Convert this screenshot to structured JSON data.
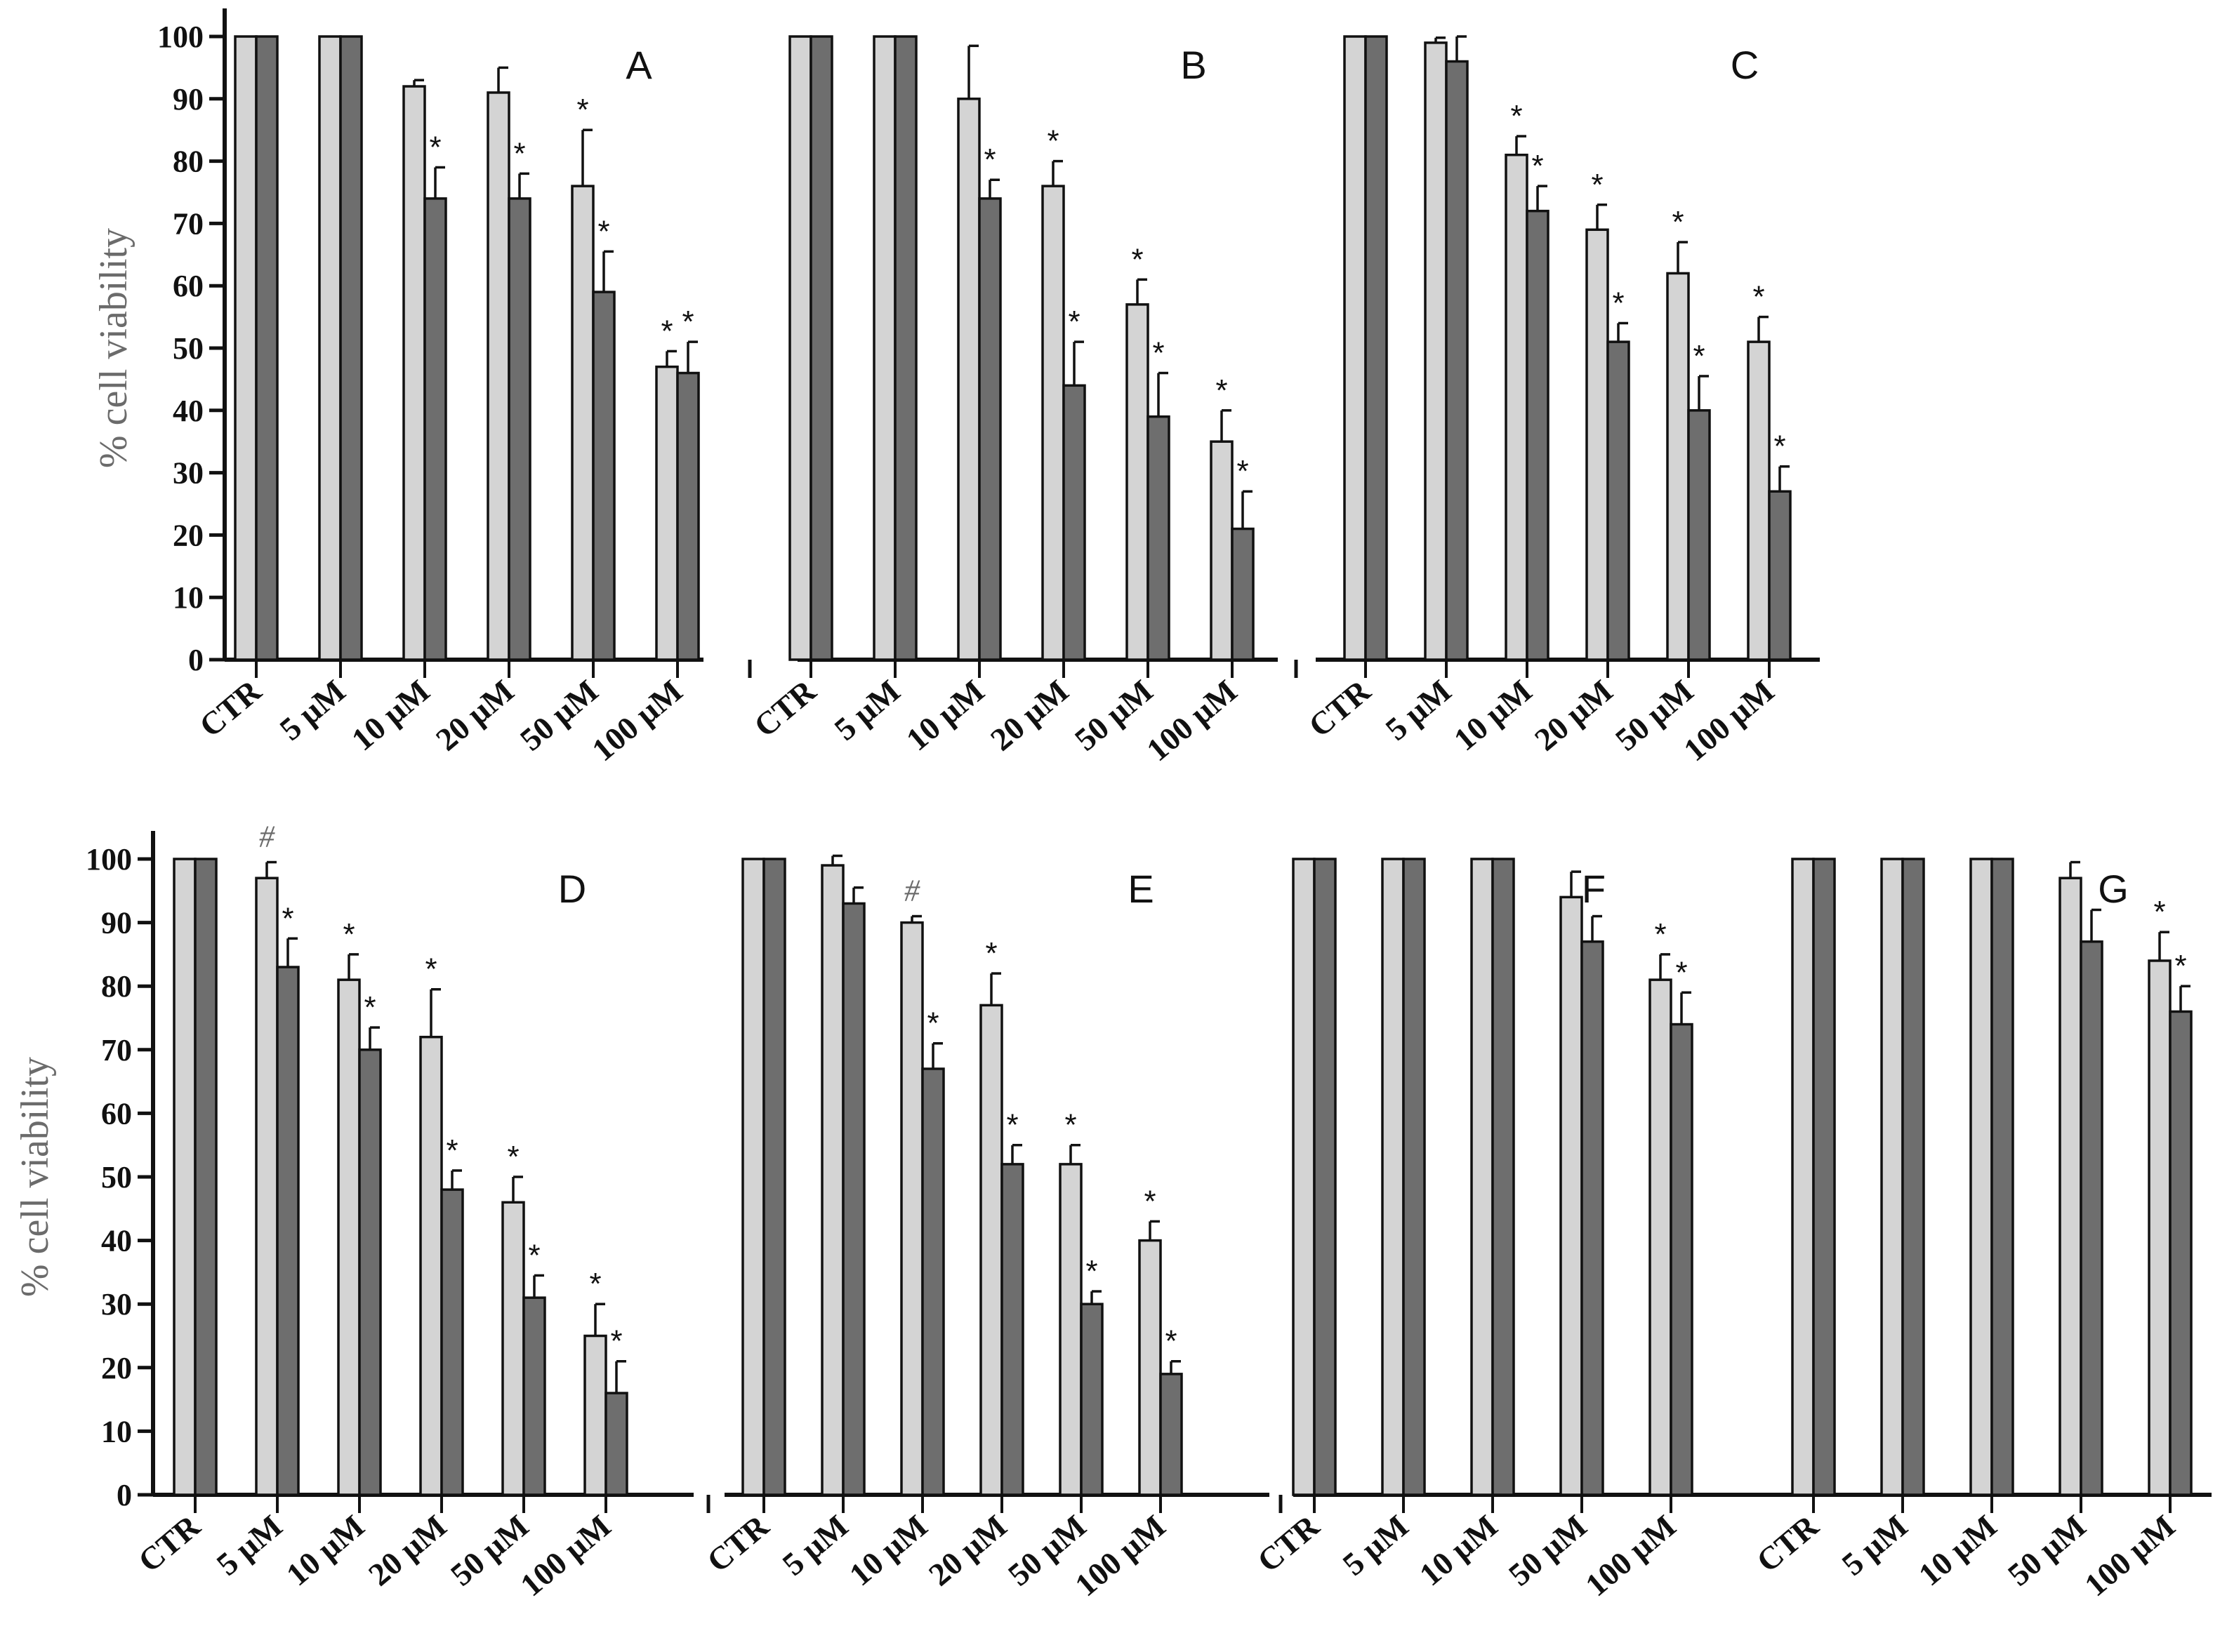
{
  "colors": {
    "light_bar": "#d4d4d4",
    "dark_bar": "#6e6e6e",
    "outline": "#111111",
    "axis": "#111111",
    "ylabel": "#6b6b6b"
  },
  "chart_data": [
    {
      "type": "bar",
      "title": "",
      "panel_labels": [
        "A",
        "B",
        "C"
      ],
      "xlabel": "",
      "ylabel": "% cell viability",
      "ylim": [
        0,
        100
      ],
      "yticks": [
        "0",
        "10",
        "20",
        "30",
        "40",
        "50",
        "60",
        "70",
        "80",
        "90",
        "100"
      ],
      "grid": false,
      "panels": [
        {
          "label": "A",
          "categories": [
            "CTR",
            "5 µM",
            "10 µM",
            "20 µM",
            "50 µM",
            "100 µM"
          ],
          "series": [
            {
              "name": "light",
              "values": [
                100,
                100,
                92,
                91,
                76,
                47
              ],
              "errors": [
                0,
                0,
                1,
                4,
                9,
                2.5
              ]
            },
            {
              "name": "dark",
              "values": [
                100,
                100,
                74,
                74,
                59,
                46
              ],
              "errors": [
                0,
                0,
                5,
                4,
                6.5,
                5
              ]
            }
          ],
          "marks": {
            "light": [
              "",
              "",
              "",
              "",
              "*",
              "*"
            ],
            "dark": [
              "",
              "",
              "*",
              "*",
              "*",
              "*"
            ]
          }
        },
        {
          "label": "B",
          "categories": [
            "CTR",
            "5 µM",
            "10 µM",
            "20 µM",
            "50 µM",
            "100 µM"
          ],
          "series": [
            {
              "name": "light",
              "values": [
                100,
                100,
                90,
                76,
                57,
                35
              ],
              "errors": [
                0,
                0,
                8.5,
                4,
                4,
                5
              ]
            },
            {
              "name": "dark",
              "values": [
                100,
                100,
                74,
                44,
                39,
                21
              ],
              "errors": [
                0,
                0,
                3,
                7,
                7,
                6
              ]
            }
          ],
          "marks": {
            "light": [
              "",
              "",
              "",
              "*",
              "*",
              "*"
            ],
            "dark": [
              "",
              "",
              "*",
              "*",
              "*",
              "*"
            ]
          }
        },
        {
          "label": "C",
          "categories": [
            "CTR",
            "5 µM",
            "10 µM",
            "20 µM",
            "50 µM",
            "100 µM"
          ],
          "series": [
            {
              "name": "light",
              "values": [
                100,
                99,
                81,
                69,
                62,
                51
              ],
              "errors": [
                0,
                0.8,
                3,
                4,
                5,
                4
              ]
            },
            {
              "name": "dark",
              "values": [
                100,
                96,
                72,
                51,
                40,
                27
              ],
              "errors": [
                0,
                4,
                4,
                3,
                5.5,
                4
              ]
            }
          ],
          "marks": {
            "light": [
              "",
              "",
              "*",
              "*",
              "*",
              "*"
            ],
            "dark": [
              "",
              "",
              "*",
              "*",
              "*",
              "*"
            ]
          }
        }
      ]
    },
    {
      "type": "bar",
      "title": "",
      "panel_labels": [
        "D",
        "E",
        "F",
        "G"
      ],
      "xlabel": "",
      "ylabel": "% cell viability",
      "ylim": [
        0,
        100
      ],
      "yticks": [
        "0",
        "10",
        "20",
        "30",
        "40",
        "50",
        "60",
        "70",
        "80",
        "90",
        "100"
      ],
      "grid": false,
      "panels": [
        {
          "label": "D",
          "categories": [
            "CTR",
            "5 µM",
            "10 µM",
            "20 µM",
            "50 µM",
            "100 µM"
          ],
          "series": [
            {
              "name": "light",
              "values": [
                100,
                97,
                81,
                72,
                46,
                25
              ],
              "errors": [
                0,
                2.5,
                4,
                7.5,
                4,
                5
              ]
            },
            {
              "name": "dark",
              "values": [
                100,
                83,
                70,
                48,
                31,
                16
              ],
              "errors": [
                0,
                4.5,
                3.5,
                3,
                3.5,
                5
              ]
            }
          ],
          "marks": {
            "light": [
              "",
              "#",
              "*",
              "*",
              "*",
              "*"
            ],
            "dark": [
              "",
              "*",
              "*",
              "*",
              "*",
              "*"
            ]
          }
        },
        {
          "label": "E",
          "categories": [
            "CTR",
            "5 µM",
            "10 µM",
            "20 µM",
            "50 µM",
            "100 µM"
          ],
          "series": [
            {
              "name": "light",
              "values": [
                100,
                99,
                90,
                77,
                52,
                40
              ],
              "errors": [
                0,
                1.5,
                1,
                5,
                3,
                3
              ]
            },
            {
              "name": "dark",
              "values": [
                100,
                93,
                67,
                52,
                30,
                19
              ],
              "errors": [
                0,
                2.5,
                4,
                3,
                2,
                2
              ]
            }
          ],
          "marks": {
            "light": [
              "",
              "",
              "#",
              "*",
              "*",
              "*"
            ],
            "dark": [
              "",
              "",
              "*",
              "*",
              "*",
              "*"
            ]
          }
        },
        {
          "label": "F",
          "categories": [
            "CTR",
            "5 µM",
            "10 µM",
            "50 µM",
            "100 µM"
          ],
          "series": [
            {
              "name": "light",
              "values": [
                100,
                100,
                100,
                94,
                81
              ],
              "errors": [
                0,
                0,
                0,
                4,
                4
              ]
            },
            {
              "name": "dark",
              "values": [
                100,
                100,
                100,
                87,
                74
              ],
              "errors": [
                0,
                0,
                0,
                4,
                5
              ]
            }
          ],
          "marks": {
            "light": [
              "",
              "",
              "",
              "",
              "*"
            ],
            "dark": [
              "",
              "",
              "",
              "",
              "*"
            ]
          }
        },
        {
          "label": "G",
          "categories": [
            "CTR",
            "5 µM",
            "10 µM",
            "50 µM",
            "100 µM"
          ],
          "series": [
            {
              "name": "light",
              "values": [
                100,
                100,
                100,
                97,
                84
              ],
              "errors": [
                0,
                0,
                0,
                2.5,
                4.5
              ]
            },
            {
              "name": "dark",
              "values": [
                100,
                100,
                100,
                87,
                76
              ],
              "errors": [
                0,
                0,
                0,
                5,
                4
              ]
            }
          ],
          "marks": {
            "light": [
              "",
              "",
              "",
              "",
              "*"
            ],
            "dark": [
              "",
              "",
              "",
              "",
              "*"
            ]
          }
        }
      ]
    }
  ]
}
